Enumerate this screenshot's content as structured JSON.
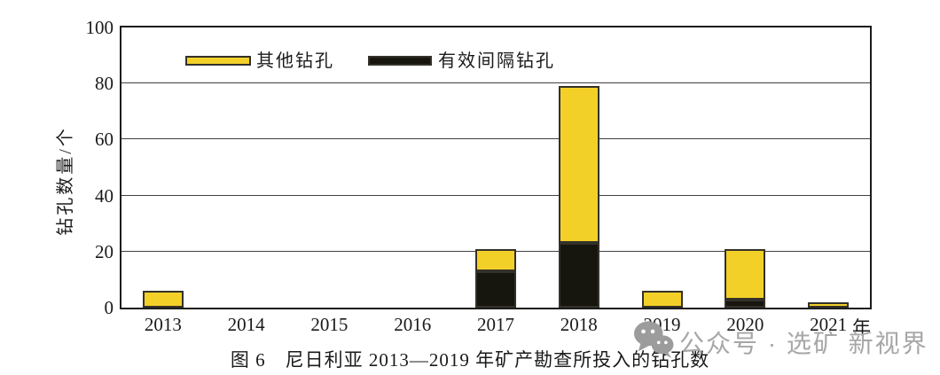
{
  "figure": {
    "caption": "图 6　尼日利亚 2013—2019 年矿产勘查所投入的钻孔数"
  },
  "axes": {
    "ylabel": "钻孔数量/个",
    "x_unit_label": "年"
  },
  "legend": {
    "items": [
      {
        "label": "其他钻孔",
        "color": "#f3d028"
      },
      {
        "label": "有效间隔钻孔",
        "color": "#16150e"
      }
    ]
  },
  "watermark": {
    "icon": "wechat-icon",
    "text": "公众号 · 选矿 新视界",
    "color": "#a7a7a7"
  },
  "chart_data": {
    "type": "bar",
    "stacked": true,
    "title": "图 6 尼日利亚 2013—2019 年矿产勘查所投入的钻孔数",
    "categories": [
      "2013",
      "2014",
      "2015",
      "2016",
      "2017",
      "2018",
      "2019",
      "2020",
      "2021"
    ],
    "series": [
      {
        "name": "有效间隔钻孔",
        "color": "#16150e",
        "values": [
          0,
          0,
          0,
          0,
          13,
          23,
          0,
          3,
          0
        ]
      },
      {
        "name": "其他钻孔",
        "color": "#f3d028",
        "values": [
          6,
          0,
          0,
          0,
          8,
          56,
          6,
          18,
          2
        ]
      }
    ],
    "totals": [
      6,
      0,
      0,
      0,
      21,
      79,
      6,
      21,
      2
    ],
    "xlabel": "年",
    "ylabel": "钻孔数量/个",
    "ylim": [
      0,
      100
    ],
    "yticks": [
      0,
      20,
      40,
      60,
      80,
      100
    ],
    "grid": true,
    "legend_position": "top-inside",
    "border_color": "#33312a",
    "gridline_color": "#404040"
  }
}
